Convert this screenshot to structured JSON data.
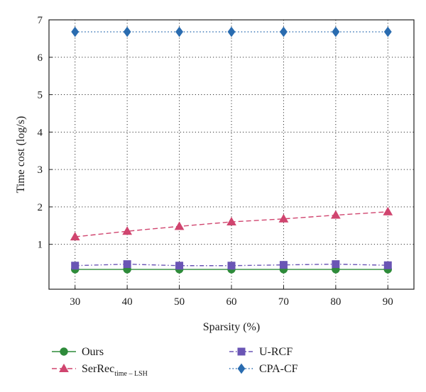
{
  "chart_data": {
    "type": "line",
    "xlabel": "Sparsity (%)",
    "ylabel": "Time cost (log/s)",
    "x": [
      30,
      40,
      50,
      60,
      70,
      80,
      90
    ],
    "xlim": [
      25,
      95
    ],
    "ylim": [
      -0.2,
      7
    ],
    "xticks": [
      "30",
      "40",
      "50",
      "60",
      "70",
      "80",
      "90"
    ],
    "yticks": [
      "1",
      "2",
      "3",
      "4",
      "5",
      "6",
      "7"
    ],
    "grid": true,
    "legend_position": "bottom",
    "series": [
      {
        "name": "Ours",
        "values": [
          0.33,
          0.33,
          0.33,
          0.33,
          0.33,
          0.33,
          0.33
        ],
        "color": "#2e8b3a",
        "marker": "circle",
        "line_style": "solid"
      },
      {
        "name": "SerRec",
        "name_subscript": "time – LSH",
        "values": [
          1.2,
          1.35,
          1.48,
          1.6,
          1.68,
          1.78,
          1.87
        ],
        "color": "#d0456f",
        "marker": "triangle",
        "line_style": "dashed"
      },
      {
        "name": "U-RCF",
        "values": [
          0.43,
          0.47,
          0.43,
          0.43,
          0.45,
          0.47,
          0.44
        ],
        "color": "#6a55b5",
        "marker": "square",
        "line_style": "dashdot"
      },
      {
        "name": "CPA-CF",
        "values": [
          6.68,
          6.68,
          6.68,
          6.68,
          6.68,
          6.68,
          6.68
        ],
        "color": "#2a6cb0",
        "marker": "diamond",
        "line_style": "dotted"
      }
    ]
  }
}
